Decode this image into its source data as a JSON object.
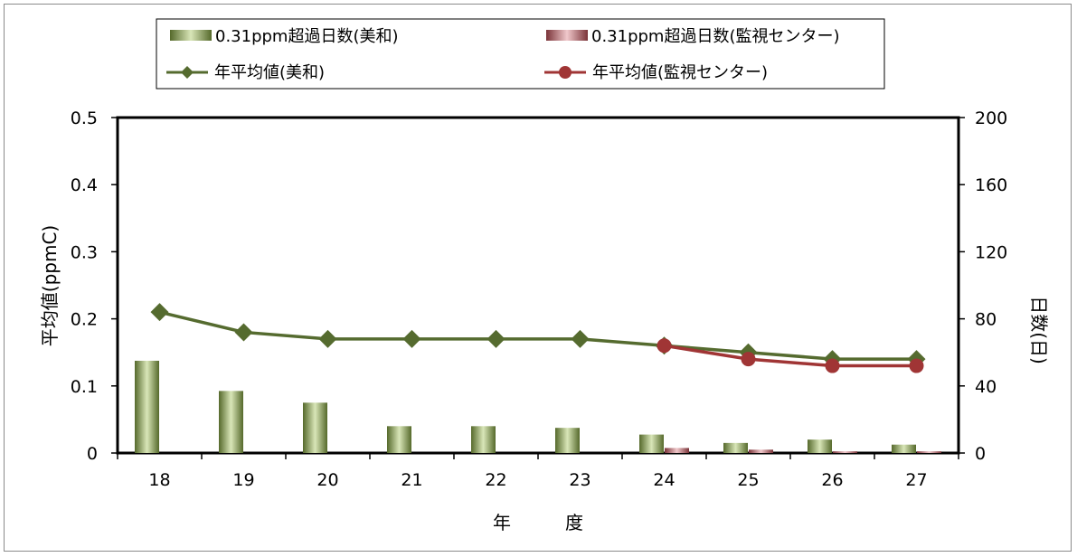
{
  "chart_data": {
    "type": "bar+line",
    "categories": [
      "18",
      "19",
      "20",
      "21",
      "22",
      "23",
      "24",
      "25",
      "26",
      "27"
    ],
    "xlabel": "年　　　度",
    "ylabel_left": "平均値(ppmC)",
    "ylabel_right": "日数(日)",
    "ylim_left": [
      0,
      0.5
    ],
    "yticks_left": [
      "0",
      "0.1",
      "0.2",
      "0.3",
      "0.4",
      "0.5"
    ],
    "ylim_right": [
      0,
      200
    ],
    "yticks_right": [
      "0",
      "40",
      "80",
      "120",
      "160",
      "200"
    ],
    "bar_series": [
      {
        "name": "0.31ppm超過日数(美和)",
        "values": [
          55,
          37,
          30,
          16,
          16,
          15,
          11,
          6,
          8,
          5
        ],
        "color": "#8fa45e"
      },
      {
        "name": "0.31ppm超過日数(監視センター)",
        "values": [
          null,
          null,
          null,
          null,
          null,
          null,
          3,
          2,
          1,
          1
        ],
        "color": "#b46a70"
      }
    ],
    "line_series": [
      {
        "name": "年平均値(美和)",
        "values": [
          0.21,
          0.18,
          0.17,
          0.17,
          0.17,
          0.17,
          0.16,
          0.15,
          0.14,
          0.14
        ],
        "color": "#556b2f",
        "marker": "diamond"
      },
      {
        "name": "年平均値(監視センター)",
        "values": [
          null,
          null,
          null,
          null,
          null,
          null,
          0.16,
          0.14,
          0.13,
          0.13
        ],
        "color": "#a03535",
        "marker": "circle"
      }
    ],
    "legend_position": "top",
    "grid": false
  }
}
